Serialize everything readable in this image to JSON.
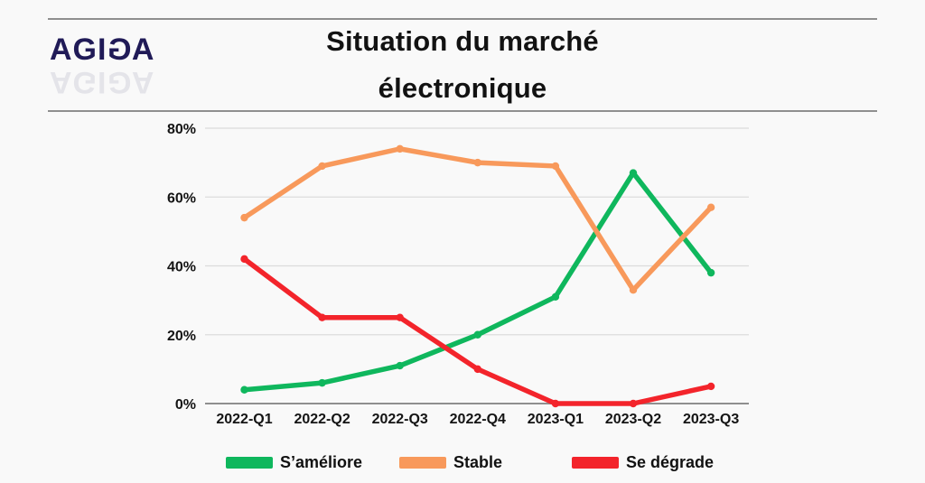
{
  "page": {
    "background": "#f9f9f9",
    "divider_color": "#8f8f8f"
  },
  "brand": {
    "name": "AGIGA",
    "prefix": "AGI",
    "mirrored_letter": "G",
    "suffix": "A",
    "color": "#201a57"
  },
  "title": {
    "line1": "Situation du marché",
    "line2": "électronique"
  },
  "chart_data": {
    "type": "line",
    "title": "Situation du marché électronique",
    "categories": [
      "2022-Q1",
      "2022-Q2",
      "2022-Q3",
      "2022-Q4",
      "2023-Q1",
      "2023-Q2",
      "2023-Q3"
    ],
    "series": [
      {
        "name": "S’améliore",
        "color": "#0fb75d",
        "values": [
          4,
          6,
          11,
          20,
          31,
          67,
          38
        ]
      },
      {
        "name": "Stable",
        "color": "#f8995b",
        "values": [
          54,
          69,
          74,
          70,
          69,
          33,
          57
        ]
      },
      {
        "name": "Se dégrade",
        "color": "#f3242b",
        "values": [
          42,
          25,
          25,
          10,
          0,
          0,
          5
        ]
      }
    ],
    "y_ticks": [
      0,
      20,
      40,
      60,
      80
    ],
    "y_tick_suffix": "%",
    "ylim": [
      0,
      80
    ],
    "grid": true,
    "legend_position": "bottom",
    "axis_color": "#8f8f8f",
    "gridline_color": "#dcdcdc",
    "tick_label_color": "#141414"
  }
}
